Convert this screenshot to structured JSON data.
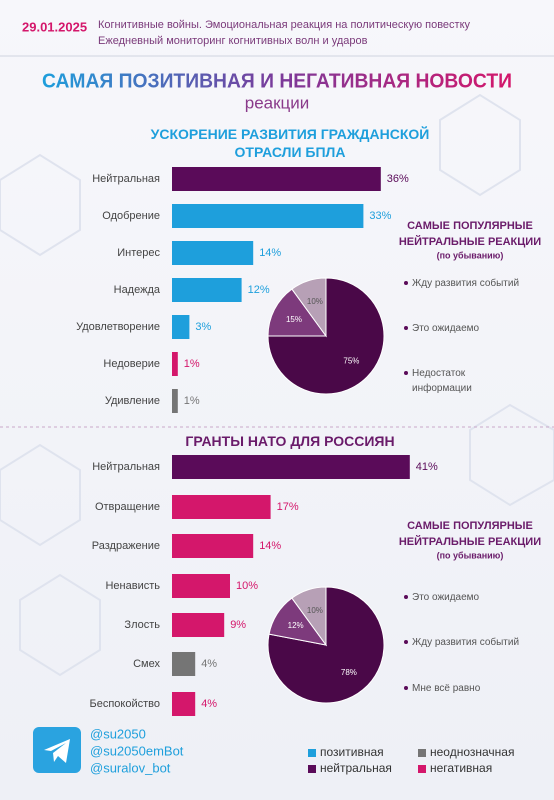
{
  "header": {
    "date": "29.01.2025",
    "subtitle_lines": [
      "Когнитивные войны. Эмоциональная реакция на политическую повестку",
      "Ежедневный мониторинг когнитивных волн и ударов"
    ],
    "title": "САМАЯ ПОЗИТИВНАЯ И НЕГАТИВНАЯ НОВОСТИ",
    "title_sub": "реакции"
  },
  "chart_data": [
    {
      "type": "bar",
      "title": "УСКОРЕНИЕ РАЗВИТИЯ ГРАЖДАНСКОЙ ОТРАСЛИ БПЛА",
      "categories": [
        "Нейтральная",
        "Одобрение",
        "Интерес",
        "Надежда",
        "Удовлетворение",
        "Недоверие",
        "Удивление"
      ],
      "values": [
        36,
        33,
        14,
        12,
        3,
        1,
        1
      ],
      "value_labels": [
        "36%",
        "33%",
        "14%",
        "12%",
        "3%",
        "1%",
        "1%"
      ],
      "colors": [
        "#5a0b59",
        "#1e9fdc",
        "#1e9fdc",
        "#1e9fdc",
        "#1e9fdc",
        "#d4176b",
        "#757575"
      ]
    },
    {
      "type": "pie",
      "title": "САМЫЕ ПОПУЛЯРНЫЕ НЕЙТРАЛЬНЫЕ РЕАКЦИИ",
      "subtitle": "(по убыванию)",
      "categories": [
        "Жду развития событий",
        "Это ожидаемо",
        "Недостаток информации"
      ],
      "values": [
        75,
        15,
        10
      ],
      "value_labels": [
        "75%",
        "15%",
        "10%"
      ],
      "colors": [
        "#4a0848",
        "#7d3a7c",
        "#b7a0b6"
      ]
    },
    {
      "type": "bar",
      "title": "ГРАНТЫ НАТО ДЛЯ РОССИЯН",
      "categories": [
        "Нейтральная",
        "Отвращение",
        "Раздражение",
        "Ненависть",
        "Злость",
        "Смех",
        "Беспокойство"
      ],
      "values": [
        41,
        17,
        14,
        10,
        9,
        4,
        4
      ],
      "value_labels": [
        "41%",
        "17%",
        "14%",
        "10%",
        "9%",
        "4%",
        "4%"
      ],
      "colors": [
        "#5a0b59",
        "#d4176b",
        "#d4176b",
        "#d4176b",
        "#d4176b",
        "#757575",
        "#d4176b"
      ]
    },
    {
      "type": "pie",
      "title": "САМЫЕ ПОПУЛЯРНЫЕ НЕЙТРАЛЬНЫЕ РЕАКЦИИ",
      "subtitle": "(по убыванию)",
      "categories": [
        "Это ожидаемо",
        "Жду развития событий",
        "Мне всё равно"
      ],
      "values": [
        78,
        12,
        10
      ],
      "value_labels": [
        "78%",
        "12%",
        "10%"
      ],
      "colors": [
        "#4a0848",
        "#7d3a7c",
        "#b7a0b6"
      ]
    }
  ],
  "footer": {
    "handles": [
      "@su2050",
      "@su2050emBot",
      "@suralov_bot"
    ],
    "legend": [
      {
        "name": "позитивная",
        "color": "#1e9fdc"
      },
      {
        "name": "неоднозначная",
        "color": "#757575"
      },
      {
        "name": "нейтральная",
        "color": "#5a0b59"
      },
      {
        "name": "негативная",
        "color": "#d4176b"
      }
    ]
  }
}
